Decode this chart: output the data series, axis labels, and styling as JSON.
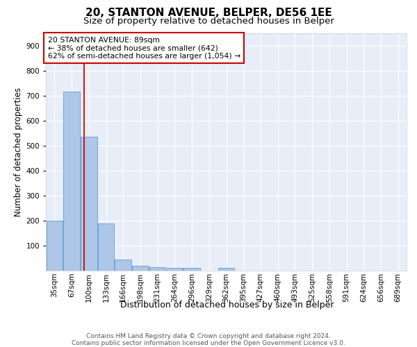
{
  "title1": "20, STANTON AVENUE, BELPER, DE56 1EE",
  "title2": "Size of property relative to detached houses in Belper",
  "xlabel": "Distribution of detached houses by size in Belper",
  "ylabel": "Number of detached properties",
  "categories": [
    "35sqm",
    "67sqm",
    "100sqm",
    "133sqm",
    "166sqm",
    "198sqm",
    "231sqm",
    "264sqm",
    "296sqm",
    "329sqm",
    "362sqm",
    "395sqm",
    "427sqm",
    "460sqm",
    "493sqm",
    "525sqm",
    "558sqm",
    "591sqm",
    "624sqm",
    "656sqm",
    "689sqm"
  ],
  "values": [
    200,
    715,
    535,
    190,
    45,
    20,
    15,
    12,
    10,
    0,
    10,
    0,
    0,
    0,
    0,
    0,
    0,
    0,
    0,
    0,
    0
  ],
  "bar_color": "#aec6e8",
  "bar_edge_color": "#5a9fd4",
  "background_color": "#e8eef8",
  "red_line_x": 1.72,
  "red_line_color": "#cc0000",
  "annotation_line1": "20 STANTON AVENUE: 89sqm",
  "annotation_line2": "← 38% of detached houses are smaller (642)",
  "annotation_line3": "62% of semi-detached houses are larger (1,054) →",
  "annotation_box_edgecolor": "#cc0000",
  "ylim": [
    0,
    950
  ],
  "yticks": [
    100,
    200,
    300,
    400,
    500,
    600,
    700,
    800,
    900
  ],
  "footer_text": "Contains HM Land Registry data © Crown copyright and database right 2024.\nContains public sector information licensed under the Open Government Licence v3.0.",
  "title1_fontsize": 11,
  "title2_fontsize": 9.5,
  "xlabel_fontsize": 9,
  "ylabel_fontsize": 8.5,
  "tick_fontsize": 7.5,
  "annotation_fontsize": 7.8,
  "footer_fontsize": 6.5
}
